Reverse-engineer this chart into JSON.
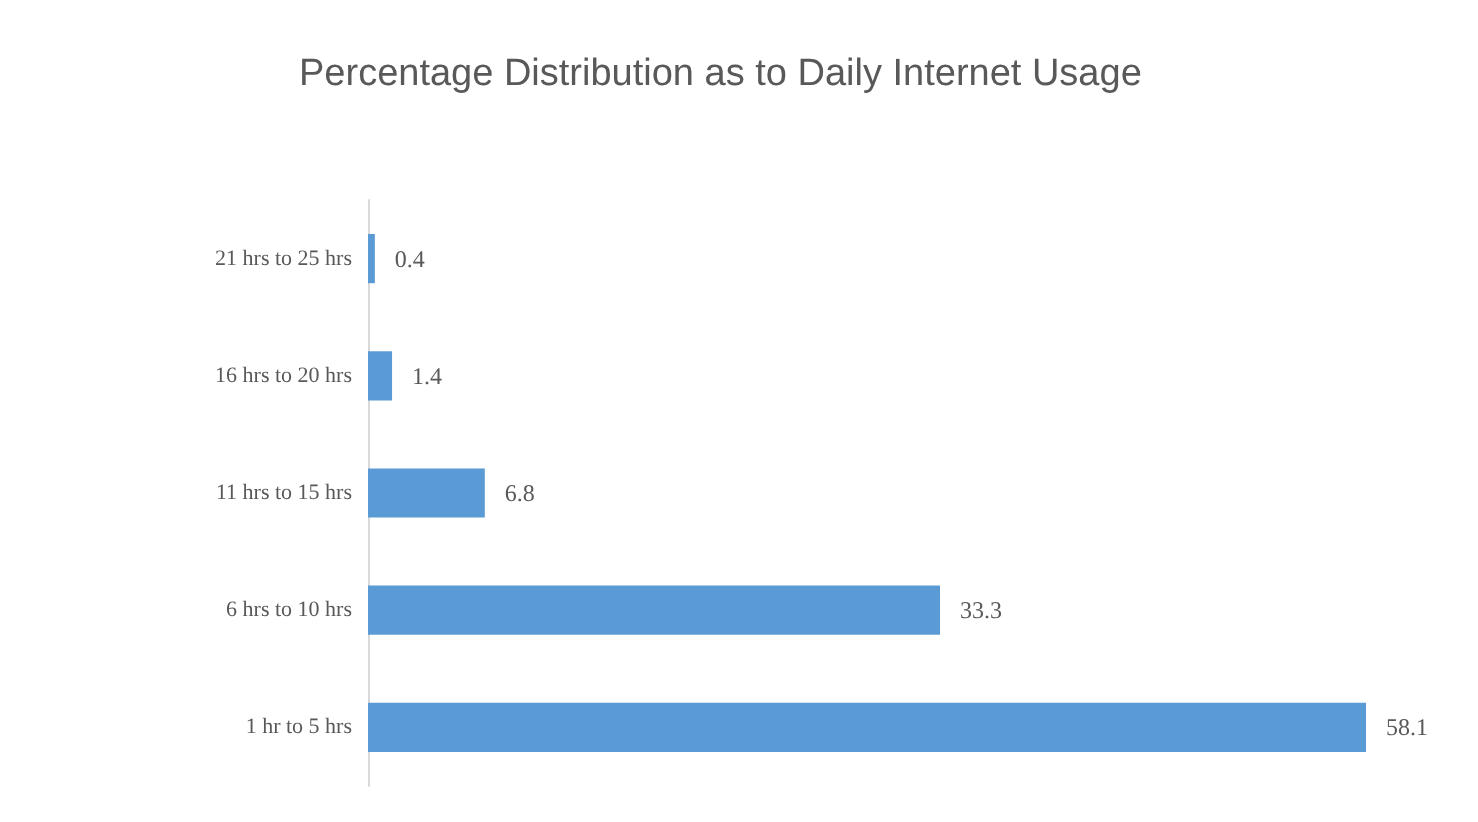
{
  "chart_data": {
    "type": "bar",
    "orientation": "horizontal",
    "title": "Percentage Distribution as to Daily Internet Usage",
    "categories": [
      "21 hrs to 25 hrs",
      "16 hrs to 20 hrs",
      "11 hrs to 15 hrs",
      "6 hrs to 10 hrs",
      "1 hr to 5 hrs"
    ],
    "values": [
      0.4,
      1.4,
      6.8,
      33.3,
      58.1
    ],
    "color": "#5b9bd5",
    "data_labels": true
  }
}
